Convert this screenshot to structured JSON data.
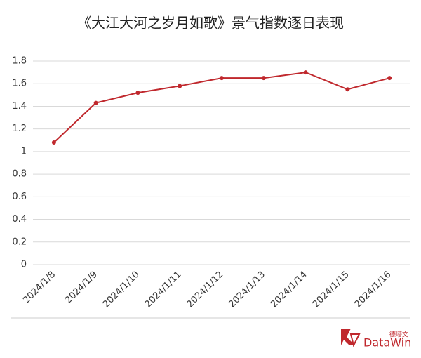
{
  "chart_data": {
    "type": "line",
    "title": "《大江大河之岁月如歌》景气指数逐日表现",
    "categories": [
      "2024/1/8",
      "2024/1/9",
      "2024/1/10",
      "2024/1/11",
      "2024/1/12",
      "2024/1/13",
      "2024/1/14",
      "2024/1/15",
      "2024/1/16"
    ],
    "series": [
      {
        "color": "#c0282d",
        "values": [
          1.08,
          1.43,
          1.52,
          1.58,
          1.65,
          1.65,
          1.7,
          1.55,
          1.65
        ]
      }
    ],
    "ylim": [
      0,
      1.8
    ],
    "yticks": [
      0,
      0.2,
      0.4,
      0.6,
      0.8,
      1,
      1.2,
      1.4,
      1.6,
      1.8
    ],
    "grid": true
  },
  "logo": {
    "text": "DataWin",
    "subtext": "德塔文"
  }
}
